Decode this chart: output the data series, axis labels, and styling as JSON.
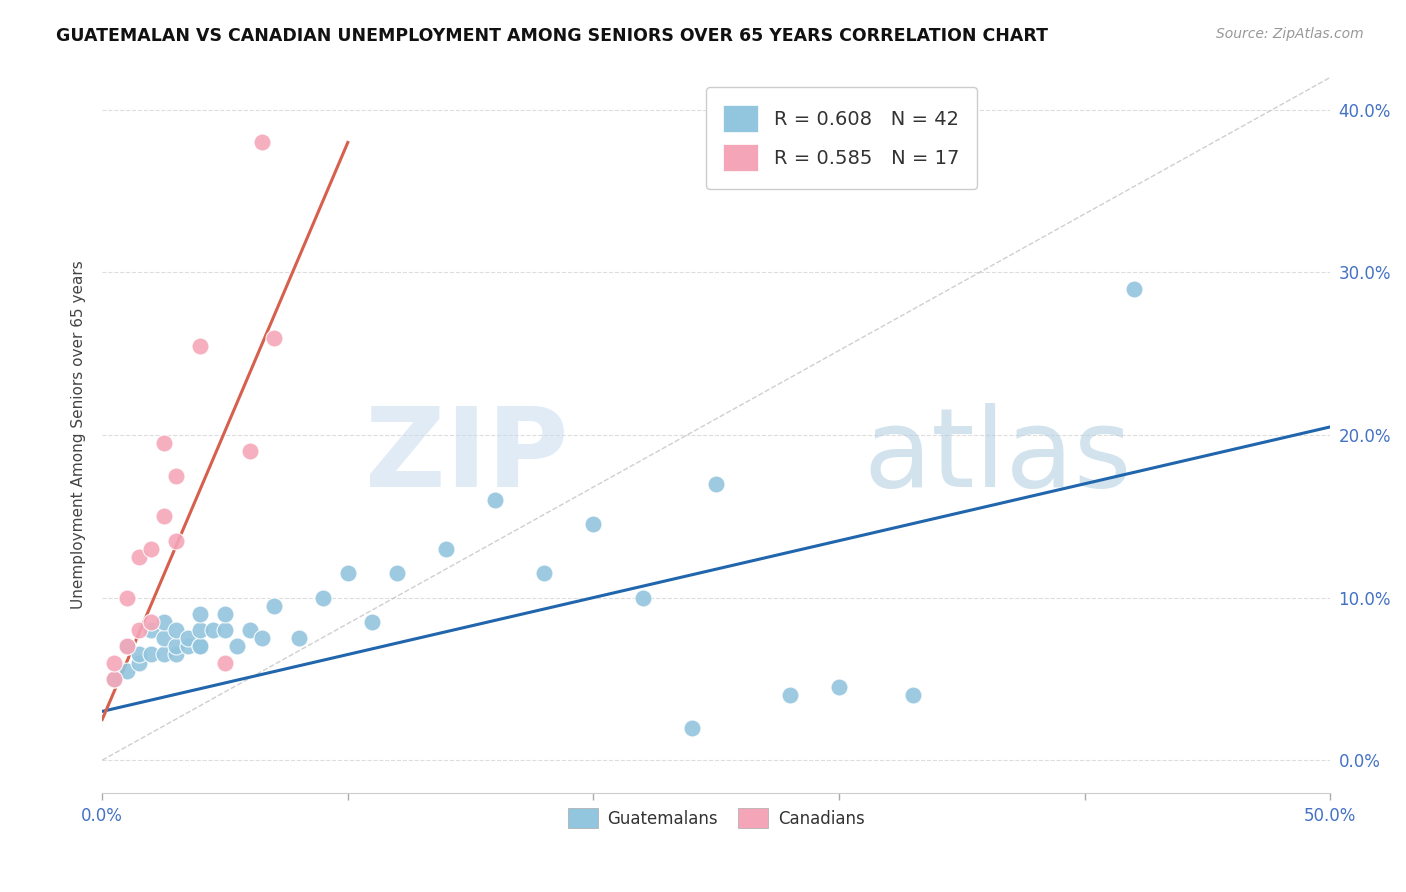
{
  "title": "GUATEMALAN VS CANADIAN UNEMPLOYMENT AMONG SENIORS OVER 65 YEARS CORRELATION CHART",
  "source": "Source: ZipAtlas.com",
  "ylabel": "Unemployment Among Seniors over 65 years",
  "xlim": [
    0.0,
    0.5
  ],
  "ylim": [
    -0.02,
    0.42
  ],
  "xticks": [
    0.0,
    0.1,
    0.2,
    0.3,
    0.4,
    0.5
  ],
  "xtick_labels_show": [
    "0.0%",
    "",
    "",
    "",
    "",
    "50.0%"
  ],
  "yticks": [
    0.0,
    0.1,
    0.2,
    0.3,
    0.4
  ],
  "ytick_labels": [
    "0.0%",
    "10.0%",
    "20.0%",
    "30.0%",
    "40.0%"
  ],
  "legend_label1": "R = 0.608   N = 42",
  "legend_label2": "R = 0.585   N = 17",
  "blue_scatter_color": "#92c5de",
  "pink_scatter_color": "#f4a6b8",
  "blue_line_color": "#2166ac",
  "pink_line_color": "#d6604d",
  "watermark_zip_color": "#c8dcf0",
  "watermark_atlas_color": "#b0cce0",
  "guatemalan_scatter_x": [
    0.005,
    0.01,
    0.01,
    0.015,
    0.015,
    0.02,
    0.02,
    0.025,
    0.025,
    0.025,
    0.03,
    0.03,
    0.03,
    0.035,
    0.035,
    0.04,
    0.04,
    0.04,
    0.04,
    0.045,
    0.05,
    0.05,
    0.055,
    0.06,
    0.065,
    0.07,
    0.08,
    0.09,
    0.1,
    0.11,
    0.12,
    0.14,
    0.16,
    0.18,
    0.2,
    0.22,
    0.24,
    0.25,
    0.28,
    0.3,
    0.33,
    0.42
  ],
  "guatemalan_scatter_y": [
    0.05,
    0.055,
    0.07,
    0.06,
    0.065,
    0.065,
    0.08,
    0.065,
    0.075,
    0.085,
    0.065,
    0.07,
    0.08,
    0.07,
    0.075,
    0.07,
    0.07,
    0.08,
    0.09,
    0.08,
    0.08,
    0.09,
    0.07,
    0.08,
    0.075,
    0.095,
    0.075,
    0.1,
    0.115,
    0.085,
    0.115,
    0.13,
    0.16,
    0.115,
    0.145,
    0.1,
    0.02,
    0.17,
    0.04,
    0.045,
    0.04,
    0.29
  ],
  "canadian_scatter_x": [
    0.005,
    0.005,
    0.01,
    0.01,
    0.015,
    0.015,
    0.02,
    0.02,
    0.025,
    0.025,
    0.03,
    0.03,
    0.04,
    0.05,
    0.06,
    0.065,
    0.07
  ],
  "canadian_scatter_y": [
    0.05,
    0.06,
    0.07,
    0.1,
    0.08,
    0.125,
    0.13,
    0.085,
    0.15,
    0.195,
    0.175,
    0.135,
    0.255,
    0.06,
    0.19,
    0.38,
    0.26
  ],
  "blue_line_x": [
    0.0,
    0.5
  ],
  "blue_line_y": [
    0.03,
    0.205
  ],
  "pink_line_x": [
    0.0,
    0.1
  ],
  "pink_line_y": [
    0.025,
    0.38
  ],
  "dashed_line_x": [
    0.0,
    0.5
  ],
  "dashed_line_y": [
    0.0,
    0.42
  ],
  "background_color": "#ffffff",
  "grid_color": "#dddddd"
}
